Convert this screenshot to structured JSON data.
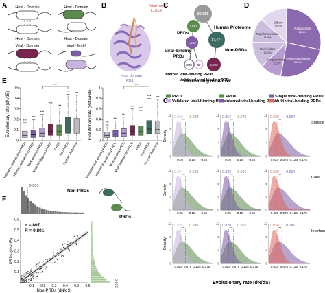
{
  "panels": {
    "A": {
      "letter": "A",
      "host_domain": "Host - Domain",
      "viral_domain": "Viral - Domain",
      "viral_motif": "Viral - Motif"
    },
    "B": {
      "letter": "B",
      "motif_label": "Viral motif",
      "motif_seq": "LxCxE",
      "domain_label": "Host domain",
      "domain_name": "RB1"
    },
    "C": {
      "letter": "C",
      "nodes": [
        {
          "value": "20,355",
          "label": "Human Proteome",
          "color": "#9a9a9a"
        },
        {
          "value": "2,881",
          "label": "PRDs",
          "color": "#5a8a4e"
        },
        {
          "value": "17,474",
          "label": "Non-PRDs",
          "color": "#3b6b63"
        },
        {
          "value": "1,252",
          "label": "Viral-binding PRDs",
          "color": "#7d5da6"
        },
        {
          "value": "5,290",
          "label": "Viral-binding non-PRDs",
          "color": "#7a2550"
        },
        {
          "value": "328",
          "label": "Inferred viral-binding PRDs",
          "color": "#ffffff"
        },
        {
          "value": "32",
          "label": "Validated viral-binding PRDs",
          "color": "#ffffff"
        }
      ]
    },
    "D": {
      "letter": "D",
      "chart_data": {
        "type": "pie",
        "labels": [
          "Retroviridae",
          "Orthomyxoviridae",
          "Herpesviridae",
          "Flaviviridae",
          "Papillomaviridae",
          "Others"
        ],
        "values": [
          28.4,
          24.4,
          10.2,
          12.2,
          11.8,
          13.1
        ],
        "display": [
          "28.4%",
          "24.4%",
          "10.2%",
          "12.2%",
          "11.8%",
          "13.1%"
        ],
        "colors": [
          "#8c6aaf",
          "#8c6aaf",
          "#b69ccf",
          "#cdbde0",
          "#cdbde0",
          "#e2d8ee"
        ]
      }
    },
    "E": {
      "letter": "E",
      "chart_data": [
        {
          "type": "box",
          "ylabel": "Evolutionary rate (dN/dS)",
          "ylim": [
            0,
            0.5
          ],
          "yticks": [
            "0",
            "0.1",
            "0.2",
            "0.3",
            "0.4",
            "0.5"
          ],
          "categories": [
            "Validated viral-binding PRDs",
            "Inferred viral-binding PRDs",
            "Viral-binding PRDs",
            "Viral-binding non-PRDs",
            "PRDs",
            "Non-PRDs",
            "Human Proteome"
          ],
          "boxes": [
            {
              "low": 0.0,
              "q1": 0.03,
              "median": 0.05,
              "q3": 0.09,
              "high": 0.17
            },
            {
              "low": 0.0,
              "q1": 0.03,
              "median": 0.055,
              "q3": 0.1,
              "high": 0.2
            },
            {
              "low": 0.0,
              "q1": 0.04,
              "median": 0.07,
              "q3": 0.12,
              "high": 0.25
            },
            {
              "low": 0.0,
              "q1": 0.05,
              "median": 0.09,
              "q3": 0.16,
              "high": 0.33
            },
            {
              "low": 0.0,
              "q1": 0.05,
              "median": 0.085,
              "q3": 0.15,
              "high": 0.31
            },
            {
              "low": 0.0,
              "q1": 0.07,
              "median": 0.12,
              "q3": 0.22,
              "high": 0.44
            },
            {
              "low": 0.0,
              "q1": 0.07,
              "median": 0.12,
              "q3": 0.21,
              "high": 0.43
            }
          ],
          "annotation": "***"
        },
        {
          "type": "box",
          "ylabel": "Evolutionary rate (Rate4site)",
          "ylim": [
            0,
            1
          ],
          "yticks": [
            "0",
            "0.2",
            "0.4",
            "0.6",
            "0.8",
            "1"
          ],
          "categories": [
            "Validated viral-binding PRDs",
            "Inferred viral-binding PRDs",
            "Viral-binding PRDs",
            "Viral-binding non-PRDs",
            "PRDs",
            "Non-PRDs",
            "Human Proteome"
          ],
          "boxes": [
            {
              "low": 0.0,
              "q1": 0.06,
              "median": 0.1,
              "q3": 0.16,
              "high": 0.3
            },
            {
              "low": 0.0,
              "q1": 0.07,
              "median": 0.12,
              "q3": 0.19,
              "high": 0.37
            },
            {
              "low": 0.0,
              "q1": 0.08,
              "median": 0.14,
              "q3": 0.23,
              "high": 0.45
            },
            {
              "low": 0.0,
              "q1": 0.1,
              "median": 0.17,
              "q3": 0.29,
              "high": 0.6
            },
            {
              "low": 0.0,
              "q1": 0.1,
              "median": 0.17,
              "q3": 0.28,
              "high": 0.57
            },
            {
              "low": 0.0,
              "q1": 0.13,
              "median": 0.22,
              "q3": 0.38,
              "high": 0.8
            },
            {
              "low": 0.0,
              "q1": 0.13,
              "median": 0.21,
              "q3": 0.37,
              "high": 0.78
            }
          ],
          "annotation": "***"
        }
      ],
      "box_colors": [
        "#c7b3de",
        "#7d5da6",
        "#b19ad0",
        "#7a2550",
        "#5a8a4e",
        "#3b6b63",
        "#bcbcbc"
      ]
    },
    "F": {
      "letter": "F",
      "chart_data": {
        "type": "scatter",
        "xlabel": "Non-PRDs (dN/dS)",
        "ylabel": "PRDs (dN/dS)",
        "xlim": [
          0,
          0.6
        ],
        "ylim": [
          0,
          0.6
        ],
        "xticks": [
          "0.1",
          "0.2",
          "0.3",
          "0.4",
          "0.5",
          "0.6"
        ],
        "yticks": [
          "0.1",
          "0.2",
          "0.3",
          "0.4",
          "0.5",
          "0.6"
        ],
        "n_label": "n = 807",
        "r_label": "R = 0.801",
        "top_hist_median": "0.065",
        "side_hist_median": "0.053",
        "non_prds": "Non-PRDs",
        "prds": "PRDs"
      }
    },
    "G": {
      "letter": "G",
      "xlabel": "Evolutionary rate (dN/dS)",
      "ylabel": "Density",
      "rows": [
        "Surface",
        "Core",
        "Interface"
      ],
      "legend_col1": [
        "PRDs",
        "Validated viral-binding PRDs"
      ],
      "legend_col2": [
        "PRDs",
        "Inferred viral-binding PRDs"
      ],
      "legend_col3": [
        "Single viral-binding PRDs",
        "Multi viral-binding PRDs"
      ],
      "annotation": "***",
      "col_xticks": [
        [
          "0.05",
          "0.15",
          "0.25"
        ],
        [
          "0.05",
          "0.15",
          "0.25"
        ],
        [
          "0.025",
          "0.075",
          "0.125",
          "0.175"
        ]
      ],
      "row_xticks": [
        [
          [
            "0.05",
            "0.15",
            "0.25"
          ],
          [
            "0.05",
            "0.15",
            "0.25"
          ],
          [
            "0.025",
            "0.075",
            "0.125",
            "0.175"
          ]
        ],
        [
          [
            "0.05",
            "0.15",
            "0.25"
          ],
          [
            "0.05",
            "0.15",
            "0.25"
          ],
          [
            "0.025",
            "0.075",
            "0.125",
            "0.175"
          ]
        ],
        [
          [
            "0.025",
            "0.075",
            "0.125",
            "0.175"
          ],
          [
            "0.025",
            "0.075",
            "0.125",
            "0.175"
          ],
          [
            "0.025",
            "0.075",
            "0.125",
            "0.175"
          ]
        ]
      ],
      "yticks": [
        "0",
        "4",
        "8",
        "12"
      ],
      "medians": [
        [
          [
            "0.055",
            "0.083"
          ],
          [
            "0.054",
            "0.075"
          ],
          [
            "0.035",
            "0.054"
          ]
        ],
        [
          [
            "0.03",
            "0.059"
          ],
          [
            "0.033",
            "0.056"
          ],
          [
            "0.026",
            "0.054"
          ]
        ],
        [
          [
            "0.025",
            "0.049"
          ],
          [
            "0.028",
            "0.052"
          ],
          [
            "0.024",
            "0.045"
          ]
        ]
      ],
      "colors": {
        "prds": "#5a8a4e",
        "validated": "#c7b3de",
        "inferred": "#7d5da6",
        "single": "#7d5da6",
        "multi": "#e06a5e"
      }
    }
  }
}
